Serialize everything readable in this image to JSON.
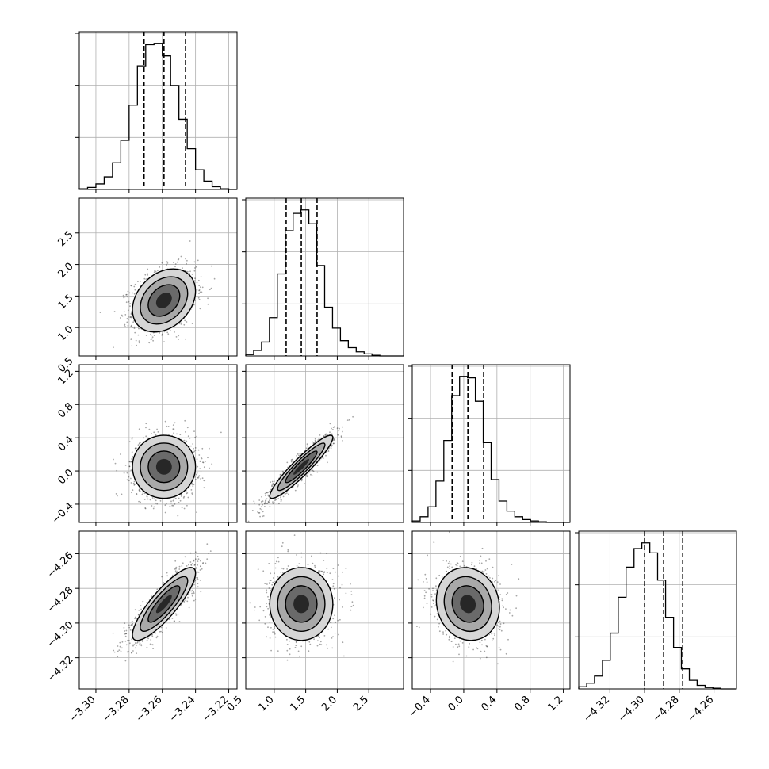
{
  "chart_data": {
    "type": "corner",
    "parameters": [
      {
        "range": [
          -3.31,
          -3.215
        ],
        "ticks": [
          "-3.30",
          "-3.28",
          "-3.26",
          "-3.24",
          "-3.22"
        ],
        "tick_values": [
          -3.3,
          -3.28,
          -3.26,
          -3.24,
          -3.22
        ],
        "quantiles": [
          -3.271,
          -3.259,
          -3.246
        ],
        "mean": -3.259,
        "sd": 0.0095
      },
      {
        "range": [
          0.55,
          3.05
        ],
        "ticks": [
          "0.5",
          "1.0",
          "1.5",
          "2.0",
          "2.5"
        ],
        "tick_values": [
          0.5,
          1.0,
          1.5,
          2.0,
          2.5
        ],
        "quantiles": [
          1.19,
          1.43,
          1.68
        ],
        "mean": 1.43,
        "sd": 0.25
      },
      {
        "range": [
          -0.62,
          1.28
        ],
        "ticks": [
          "-0.4",
          "0.0",
          "0.4",
          "0.8",
          "1.2"
        ],
        "tick_values": [
          -0.4,
          0.0,
          0.4,
          0.8,
          1.2
        ],
        "quantiles": [
          -0.14,
          0.05,
          0.24
        ],
        "mean": 0.05,
        "sd": 0.19
      },
      {
        "range": [
          -4.338,
          -4.247
        ],
        "ticks": [
          "-4.32",
          "-4.30",
          "-4.28",
          "-4.26"
        ],
        "tick_values": [
          -4.32,
          -4.3,
          -4.28,
          -4.26
        ],
        "quantiles": [
          -4.3,
          -4.289,
          -4.278
        ],
        "mean": -4.289,
        "sd": 0.0105
      }
    ],
    "histograms": [
      {
        "param": 0,
        "bin_edges": [
          -3.31,
          -3.305,
          -3.3,
          -3.295,
          -3.29,
          -3.285,
          -3.28,
          -3.275,
          -3.27,
          -3.265,
          -3.26,
          -3.255,
          -3.25,
          -3.245,
          -3.24,
          -3.235,
          -3.23,
          -3.225,
          -3.22,
          -3.215
        ],
        "counts": [
          1,
          3,
          8,
          18,
          38,
          70,
          120,
          176,
          206,
          208,
          190,
          148,
          100,
          58,
          28,
          12,
          4,
          1,
          0
        ]
      },
      {
        "param": 1,
        "bin_edges": [
          0.55,
          0.675,
          0.8,
          0.925,
          1.05,
          1.175,
          1.3,
          1.425,
          1.55,
          1.675,
          1.8,
          1.925,
          2.05,
          2.175,
          2.3,
          2.425,
          2.55,
          2.675,
          2.8,
          2.925,
          3.05
        ],
        "counts": [
          2,
          8,
          20,
          55,
          118,
          180,
          205,
          210,
          190,
          130,
          70,
          40,
          22,
          12,
          6,
          3,
          1,
          0,
          0,
          0
        ]
      },
      {
        "param": 2,
        "bin_edges": [
          -0.62,
          -0.525,
          -0.43,
          -0.335,
          -0.24,
          -0.145,
          -0.05,
          0.045,
          0.14,
          0.235,
          0.33,
          0.425,
          0.52,
          0.615,
          0.71,
          0.805,
          0.9,
          0.995,
          1.09,
          1.185,
          1.28
        ],
        "counts": [
          2,
          8,
          22,
          58,
          115,
          178,
          205,
          203,
          170,
          112,
          60,
          30,
          16,
          8,
          4,
          2,
          1,
          0,
          0,
          0
        ]
      },
      {
        "param": 3,
        "bin_edges": [
          -4.338,
          -4.3334,
          -4.3289,
          -4.3243,
          -4.3198,
          -4.3152,
          -4.3107,
          -4.3061,
          -4.3016,
          -4.297,
          -4.2925,
          -4.2879,
          -4.2833,
          -4.2788,
          -4.2742,
          -4.2697,
          -4.2651,
          -4.2606,
          -4.256,
          -4.2515,
          -4.247
        ],
        "counts": [
          3,
          8,
          18,
          40,
          78,
          128,
          170,
          196,
          204,
          190,
          152,
          100,
          58,
          28,
          12,
          5,
          2,
          1,
          0,
          0
        ]
      }
    ],
    "correlations": [
      {
        "x_param": 0,
        "y_param": 1,
        "rho": 0.3
      },
      {
        "x_param": 0,
        "y_param": 2,
        "rho": 0.0
      },
      {
        "x_param": 1,
        "y_param": 2,
        "rho": 0.93
      },
      {
        "x_param": 0,
        "y_param": 3,
        "rho": 0.85
      },
      {
        "x_param": 1,
        "y_param": 3,
        "rho": 0.0
      },
      {
        "x_param": 2,
        "y_param": 3,
        "rho": -0.1
      }
    ],
    "contour_levels_sigma": [
      0.5,
      1.0,
      1.5,
      2.0
    ],
    "grid": true,
    "title": "",
    "xlabel": "",
    "ylabel": ""
  },
  "colors": {
    "line": "#000000",
    "grid": "#b0b0b0",
    "points": "#000000"
  }
}
